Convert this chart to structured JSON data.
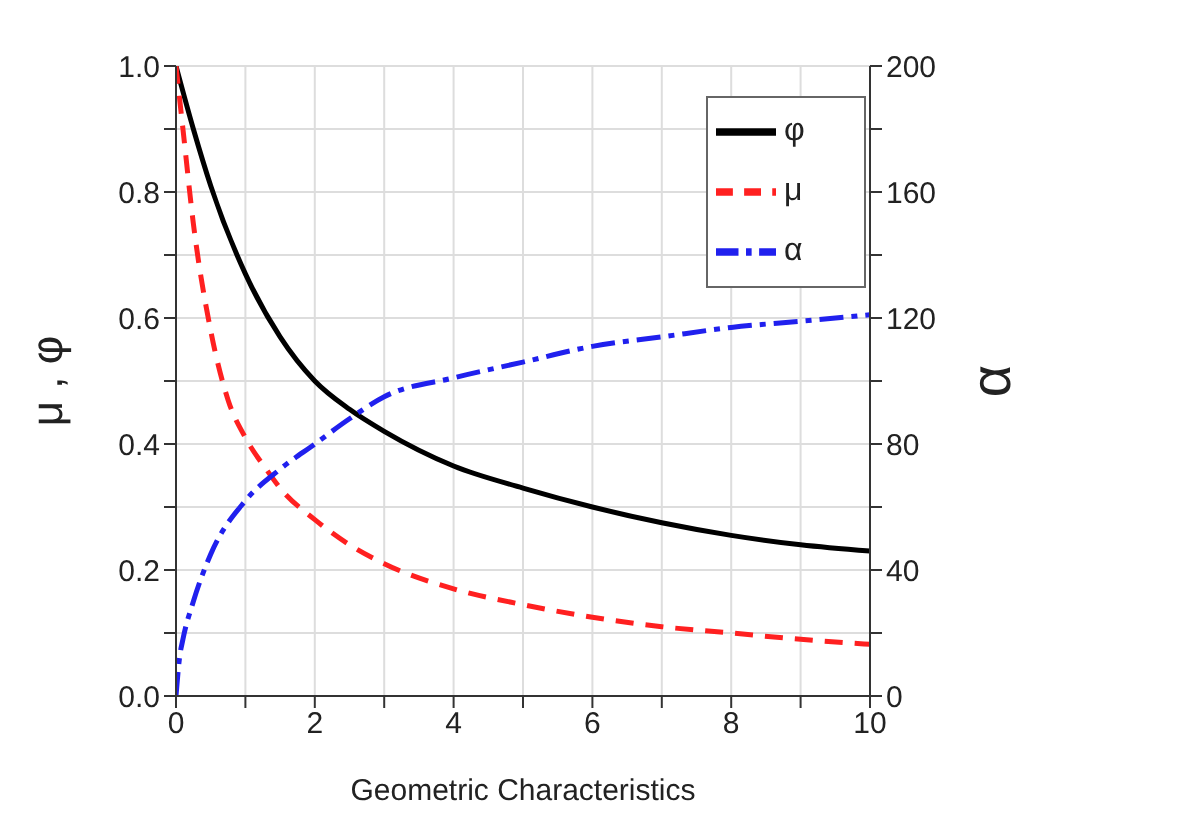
{
  "chart_data": {
    "type": "line",
    "xlabel": "Geometric Characteristics",
    "ylabel": "μ , φ",
    "y2label": "α",
    "xlim": [
      0,
      10
    ],
    "xticks": [
      0,
      {
        "value": 1,
        "label": null
      },
      2,
      {
        "value": 3,
        "label": null
      },
      4,
      {
        "value": 5,
        "label": null
      },
      6,
      {
        "value": 7,
        "label": null
      },
      8,
      {
        "value": 9,
        "label": null
      },
      10
    ],
    "ylim": [
      0,
      1
    ],
    "yticks": [
      "0.0",
      {
        "value": 0.1,
        "label": null
      },
      0.2,
      {
        "value": 0.3,
        "label": null
      },
      0.4,
      {
        "value": 0.5,
        "label": null
      },
      0.6,
      {
        "value": 0.7,
        "label": null
      },
      0.8,
      {
        "value": 0.9,
        "label": null
      },
      "1.0"
    ],
    "y2lim": [
      0,
      200
    ],
    "y2ticks": [
      0,
      {
        "value": 20,
        "label": null
      },
      40,
      {
        "value": 60,
        "label": null
      },
      80,
      {
        "value": 100,
        "label": null
      },
      120,
      {
        "value": 140,
        "label": null
      },
      160,
      {
        "value": 180,
        "label": null
      },
      200
    ],
    "grid": true,
    "legend": "top right",
    "marker": "none",
    "series": [
      {
        "name": "φ",
        "color": "#000000",
        "line_style": "solid",
        "x": [
          0,
          0.25,
          0.5,
          1,
          1.5,
          2,
          2.5,
          3,
          4,
          5,
          6,
          7,
          8,
          9,
          10
        ],
        "values": [
          1.0,
          0.9,
          0.81,
          0.67,
          0.57,
          0.5,
          0.455,
          0.42,
          0.365,
          0.33,
          0.3,
          0.275,
          0.255,
          0.24,
          0.23
        ]
      },
      {
        "name": "μ",
        "color": "#ff2020",
        "line_style": "dashed",
        "x": [
          0,
          0.1,
          0.25,
          0.5,
          0.75,
          1,
          1.3,
          1.5,
          2,
          2.5,
          3,
          4,
          5,
          6,
          7,
          8,
          9,
          10
        ],
        "values": [
          1.0,
          0.9,
          0.75,
          0.58,
          0.47,
          0.41,
          0.36,
          0.33,
          0.28,
          0.24,
          0.21,
          0.17,
          0.145,
          0.125,
          0.11,
          0.1,
          0.09,
          0.082
        ]
      },
      {
        "name": "α",
        "color": "#2020ee",
        "line_style": "dashdot",
        "axis": "y2",
        "x": [
          0,
          0.05,
          0.1,
          0.25,
          0.5,
          1,
          1.5,
          2,
          2.5,
          3,
          4,
          5,
          6,
          7,
          8,
          9,
          10
        ],
        "values": [
          0,
          12,
          18,
          30,
          45,
          62,
          72,
          80,
          88,
          95,
          101,
          106,
          111,
          114,
          117,
          119,
          121
        ]
      }
    ]
  }
}
